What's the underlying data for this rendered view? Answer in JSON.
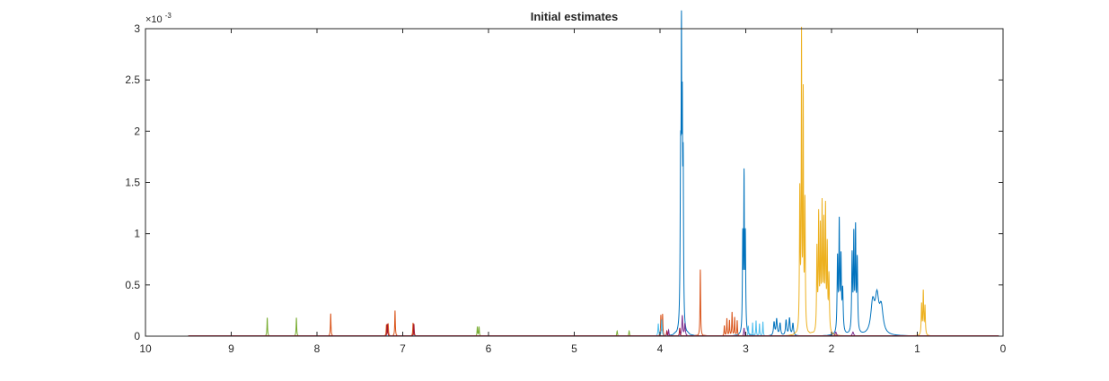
{
  "chart_data": {
    "type": "line",
    "title": "Initial estimates",
    "xlabel": "",
    "ylabel": "",
    "x_reversed": true,
    "xlim": [
      0,
      10
    ],
    "ylim": [
      0,
      0.003
    ],
    "grid": false,
    "y_exponent_label": "×10",
    "y_exponent_power": "-3",
    "x_ticks": [
      10,
      9,
      8,
      7,
      6,
      5,
      4,
      3,
      2,
      1,
      0
    ],
    "x_tick_labels": [
      "10",
      "9",
      "8",
      "7",
      "6",
      "5",
      "4",
      "3",
      "2",
      "1",
      "0"
    ],
    "y_ticks": [
      0,
      0.0005,
      0.001,
      0.0015,
      0.002,
      0.0025,
      0.003
    ],
    "y_tick_labels": [
      "0",
      "0.5",
      "1",
      "1.5",
      "2",
      "2.5",
      "3"
    ],
    "baseline_range": [
      0.05,
      9.5
    ],
    "series": [
      {
        "color": "#0072BD",
        "peaks": [
          {
            "x": 3.76,
            "y": 0.00152,
            "w": 0.006
          },
          {
            "x": 3.75,
            "y": 0.00245,
            "w": 0.004
          },
          {
            "x": 3.74,
            "y": 0.00172,
            "w": 0.004
          },
          {
            "x": 3.73,
            "y": 0.0015,
            "w": 0.005
          },
          {
            "x": 3.035,
            "y": 0.00093,
            "w": 0.005
          },
          {
            "x": 3.02,
            "y": 0.00145,
            "w": 0.004
          },
          {
            "x": 3.005,
            "y": 0.00093,
            "w": 0.005
          },
          {
            "x": 2.67,
            "y": 0.00013,
            "w": 0.008
          },
          {
            "x": 2.64,
            "y": 0.00016,
            "w": 0.008
          },
          {
            "x": 2.6,
            "y": 0.00012,
            "w": 0.008
          },
          {
            "x": 2.53,
            "y": 0.00015,
            "w": 0.008
          },
          {
            "x": 2.49,
            "y": 0.00017,
            "w": 0.008
          },
          {
            "x": 2.45,
            "y": 0.00012,
            "w": 0.008
          },
          {
            "x": 1.93,
            "y": 0.00072,
            "w": 0.006
          },
          {
            "x": 1.91,
            "y": 0.00103,
            "w": 0.005
          },
          {
            "x": 1.89,
            "y": 0.0007,
            "w": 0.006
          },
          {
            "x": 1.87,
            "y": 0.0004,
            "w": 0.007
          },
          {
            "x": 1.76,
            "y": 0.00075,
            "w": 0.006
          },
          {
            "x": 1.74,
            "y": 0.0009,
            "w": 0.005
          },
          {
            "x": 1.72,
            "y": 0.00097,
            "w": 0.005
          },
          {
            "x": 1.7,
            "y": 0.0007,
            "w": 0.006
          },
          {
            "x": 1.52,
            "y": 0.0003,
            "w": 0.025
          },
          {
            "x": 1.47,
            "y": 0.00034,
            "w": 0.025
          },
          {
            "x": 1.42,
            "y": 0.00025,
            "w": 0.025
          }
        ]
      },
      {
        "color": "#D95319",
        "peaks": [
          {
            "x": 7.84,
            "y": 0.00022,
            "w": 0.004
          },
          {
            "x": 7.19,
            "y": 0.00011,
            "w": 0.004
          },
          {
            "x": 7.17,
            "y": 0.00012,
            "w": 0.004
          },
          {
            "x": 7.09,
            "y": 0.00025,
            "w": 0.004
          },
          {
            "x": 6.88,
            "y": 0.00013,
            "w": 0.004
          },
          {
            "x": 3.99,
            "y": 0.0002,
            "w": 0.004
          },
          {
            "x": 3.97,
            "y": 0.00021,
            "w": 0.004
          },
          {
            "x": 3.53,
            "y": 0.00065,
            "w": 0.004
          },
          {
            "x": 3.25,
            "y": 0.0001,
            "w": 0.004
          },
          {
            "x": 3.22,
            "y": 0.00017,
            "w": 0.004
          },
          {
            "x": 3.19,
            "y": 0.00015,
            "w": 0.004
          },
          {
            "x": 3.16,
            "y": 0.00023,
            "w": 0.004
          },
          {
            "x": 3.13,
            "y": 0.00018,
            "w": 0.004
          },
          {
            "x": 3.1,
            "y": 0.00015,
            "w": 0.004
          }
        ]
      },
      {
        "color": "#EDB120",
        "peaks": [
          {
            "x": 2.37,
            "y": 0.00135,
            "w": 0.005
          },
          {
            "x": 2.35,
            "y": 0.00283,
            "w": 0.004
          },
          {
            "x": 2.33,
            "y": 0.00225,
            "w": 0.004
          },
          {
            "x": 2.31,
            "y": 0.00125,
            "w": 0.005
          },
          {
            "x": 2.17,
            "y": 0.0008,
            "w": 0.005
          },
          {
            "x": 2.15,
            "y": 0.0011,
            "w": 0.005
          },
          {
            "x": 2.13,
            "y": 0.00095,
            "w": 0.005
          },
          {
            "x": 2.11,
            "y": 0.00118,
            "w": 0.005
          },
          {
            "x": 2.09,
            "y": 0.001,
            "w": 0.005
          },
          {
            "x": 2.07,
            "y": 0.00117,
            "w": 0.005
          },
          {
            "x": 2.05,
            "y": 0.0008,
            "w": 0.005
          },
          {
            "x": 2.03,
            "y": 0.00055,
            "w": 0.006
          },
          {
            "x": 0.95,
            "y": 0.0003,
            "w": 0.005
          },
          {
            "x": 0.93,
            "y": 0.00042,
            "w": 0.005
          },
          {
            "x": 0.91,
            "y": 0.00028,
            "w": 0.005
          }
        ]
      },
      {
        "color": "#7E2F8E",
        "peaks": [
          {
            "x": 3.74,
            "y": 0.0002,
            "w": 0.006
          },
          {
            "x": 3.71,
            "y": 0.00012,
            "w": 0.006
          },
          {
            "x": 3.9,
            "y": 6e-05,
            "w": 0.005
          },
          {
            "x": 3.02,
            "y": 8e-05,
            "w": 0.005
          },
          {
            "x": 1.95,
            "y": 4e-05,
            "w": 0.01
          },
          {
            "x": 1.75,
            "y": 4e-05,
            "w": 0.01
          }
        ]
      },
      {
        "color": "#77AC30",
        "peaks": [
          {
            "x": 8.58,
            "y": 0.00018,
            "w": 0.004
          },
          {
            "x": 8.24,
            "y": 0.00018,
            "w": 0.004
          },
          {
            "x": 6.13,
            "y": 9e-05,
            "w": 0.004
          },
          {
            "x": 6.11,
            "y": 9e-05,
            "w": 0.004
          },
          {
            "x": 4.5,
            "y": 5e-05,
            "w": 0.005
          },
          {
            "x": 4.36,
            "y": 5e-05,
            "w": 0.005
          }
        ]
      },
      {
        "color": "#4DBEEE",
        "peaks": [
          {
            "x": 4.02,
            "y": 0.00012,
            "w": 0.005
          },
          {
            "x": 3.98,
            "y": 0.00016,
            "w": 0.005
          },
          {
            "x": 2.97,
            "y": 0.0001,
            "w": 0.004
          },
          {
            "x": 2.92,
            "y": 0.00013,
            "w": 0.004
          },
          {
            "x": 2.88,
            "y": 0.00015,
            "w": 0.004
          },
          {
            "x": 2.84,
            "y": 0.00012,
            "w": 0.004
          },
          {
            "x": 2.8,
            "y": 0.00014,
            "w": 0.004
          }
        ]
      },
      {
        "color": "#A2142F",
        "peaks": [
          {
            "x": 7.18,
            "y": 0.00012,
            "w": 0.004
          },
          {
            "x": 6.87,
            "y": 0.00012,
            "w": 0.004
          },
          {
            "x": 3.92,
            "y": 5e-05,
            "w": 0.005
          },
          {
            "x": 3.77,
            "y": 8e-05,
            "w": 0.005
          }
        ]
      }
    ]
  }
}
